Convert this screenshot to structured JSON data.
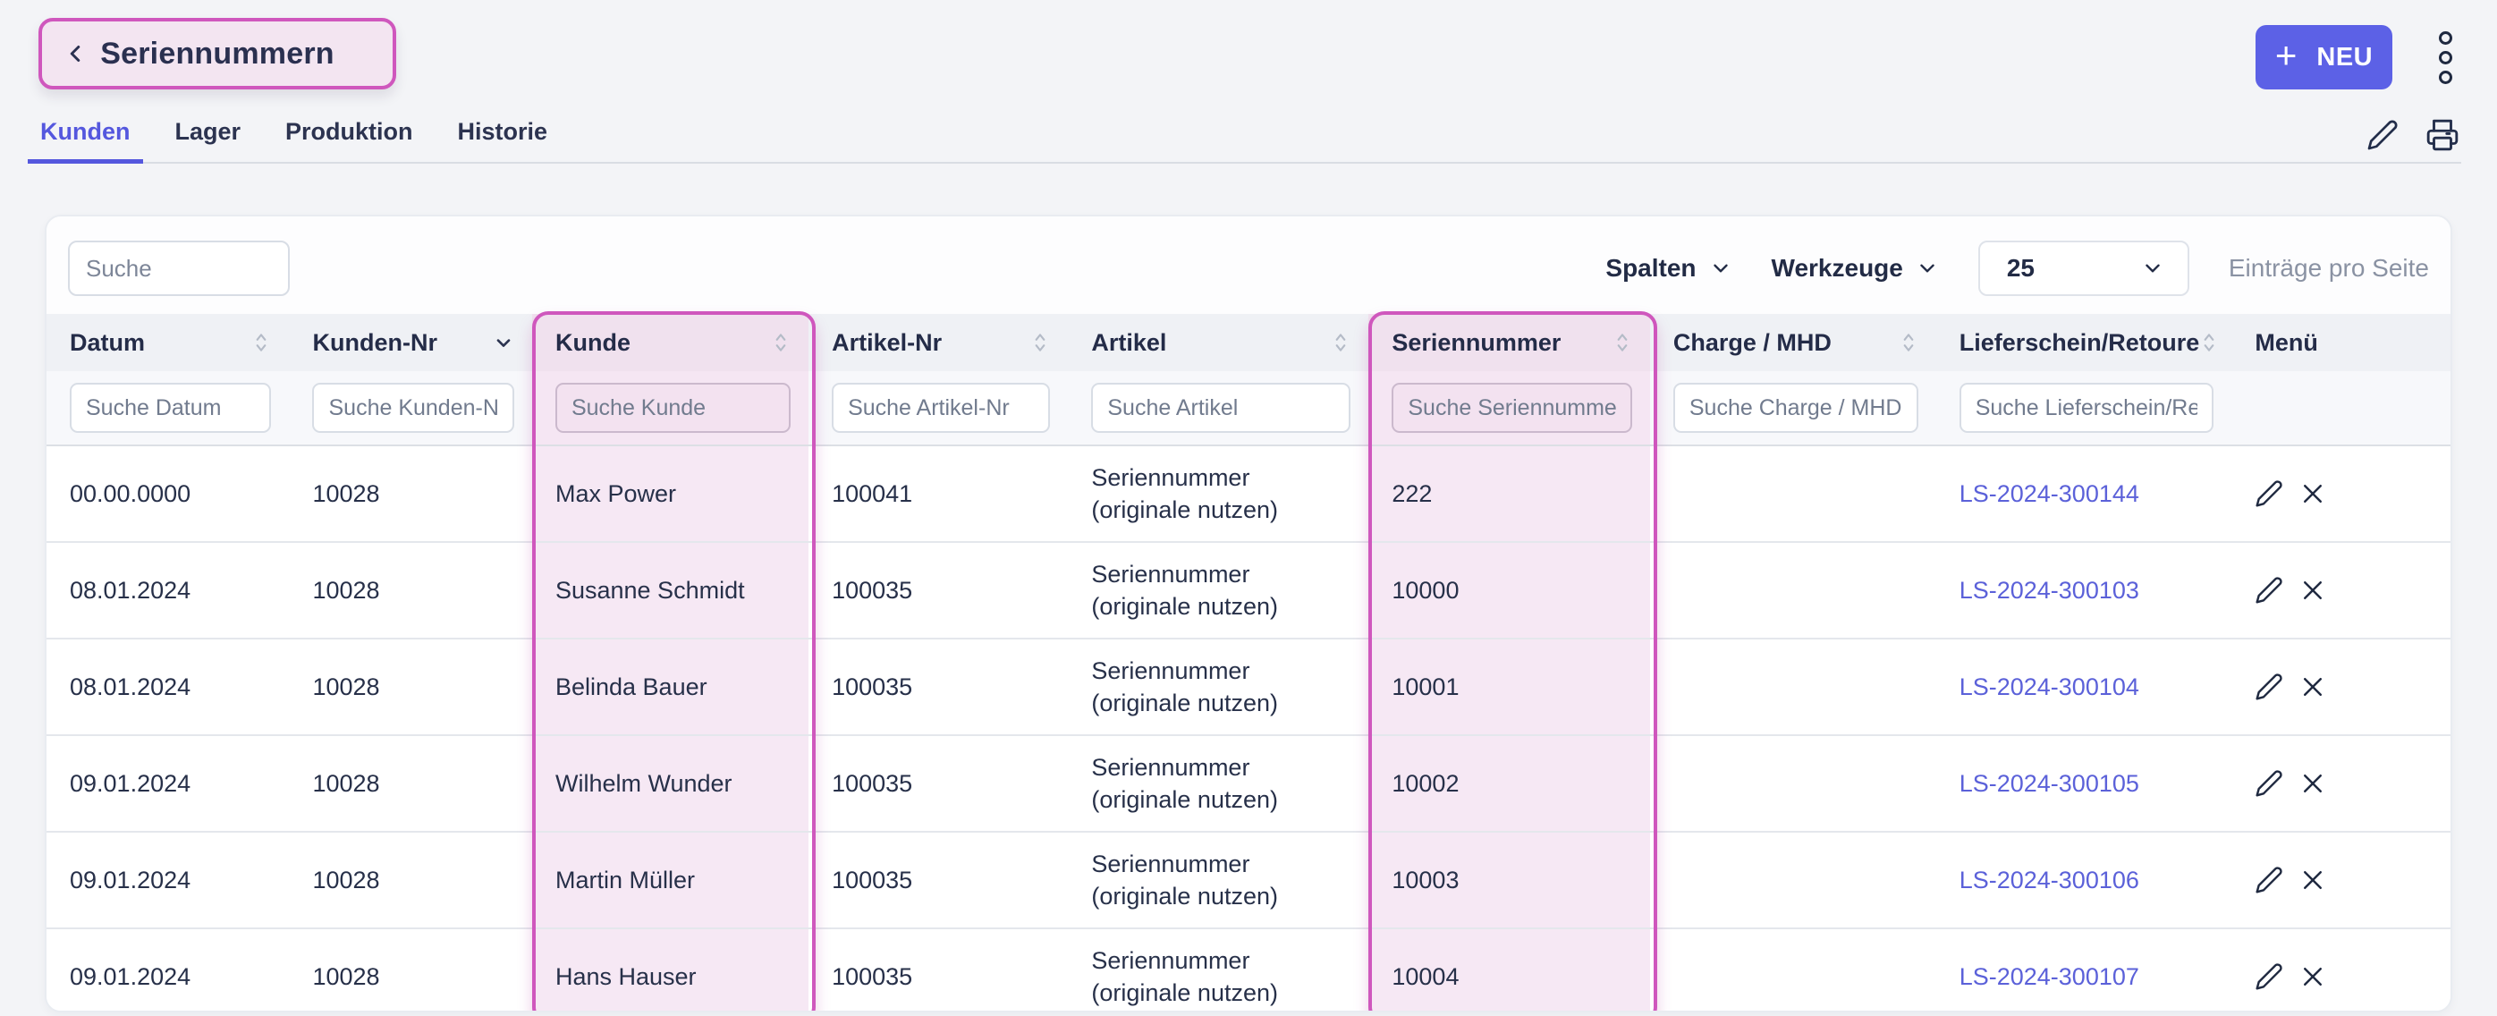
{
  "header": {
    "title": "Seriennummern",
    "back_icon": "chevron-left",
    "neu_button": {
      "plus": "+",
      "label": "NEU"
    },
    "kebab_icon": "three-dots-vertical",
    "tabs": [
      {
        "label": "Kunden",
        "active": true
      },
      {
        "label": "Lager",
        "active": false
      },
      {
        "label": "Produktion",
        "active": false
      },
      {
        "label": "Historie",
        "active": false
      }
    ],
    "action_icons": [
      "edit-pencil",
      "printer"
    ]
  },
  "toolbar": {
    "search_placeholder": "Suche",
    "spalten_label": "Spalten",
    "werkzeuge_label": "Werkzeuge",
    "page_size_value": "25",
    "entries_per_page_label": "Einträge pro Seite"
  },
  "table": {
    "columns": [
      {
        "key": "datum",
        "label": "Datum",
        "sort": "both",
        "filter_placeholder": "Suche Datum",
        "highlighted": false
      },
      {
        "key": "kunden-nr",
        "label": "Kunden-Nr",
        "sort": "desc",
        "filter_placeholder": "Suche Kunden-Nr",
        "highlighted": false
      },
      {
        "key": "kunde",
        "label": "Kunde",
        "sort": "both",
        "filter_placeholder": "Suche Kunde",
        "highlighted": true
      },
      {
        "key": "artikel-nr",
        "label": "Artikel-Nr",
        "sort": "both",
        "filter_placeholder": "Suche Artikel-Nr",
        "highlighted": false
      },
      {
        "key": "artikel",
        "label": "Artikel",
        "sort": "both",
        "filter_placeholder": "Suche Artikel",
        "highlighted": false
      },
      {
        "key": "seriennummer",
        "label": "Seriennummer",
        "sort": "both",
        "filter_placeholder": "Suche Seriennummer",
        "highlighted": true
      },
      {
        "key": "charge-mhd",
        "label": "Charge / MHD",
        "sort": "both",
        "filter_placeholder": "Suche Charge / MHD",
        "highlighted": false
      },
      {
        "key": "lieferschein-retoure",
        "label": "Lieferschein/Retoure",
        "sort": "both",
        "filter_placeholder": "Suche Lieferschein/Retoure",
        "highlighted": false
      },
      {
        "key": "menu",
        "label": "Menü",
        "sort": "none",
        "filter_placeholder": "",
        "highlighted": false
      }
    ],
    "rows": [
      {
        "datum": "00.00.0000",
        "kunden_nr": "10028",
        "kunde": "Max Power",
        "artikel_nr": "100041",
        "artikel": "Seriennummer (originale nutzen)",
        "seriennummer": "222",
        "charge_mhd": "",
        "lieferschein": "LS-2024-300144"
      },
      {
        "datum": "08.01.2024",
        "kunden_nr": "10028",
        "kunde": "Susanne Schmidt",
        "artikel_nr": "100035",
        "artikel": "Seriennummer (originale nutzen)",
        "seriennummer": "10000",
        "charge_mhd": "",
        "lieferschein": "LS-2024-300103"
      },
      {
        "datum": "08.01.2024",
        "kunden_nr": "10028",
        "kunde": "Belinda Bauer",
        "artikel_nr": "100035",
        "artikel": "Seriennummer (originale nutzen)",
        "seriennummer": "10001",
        "charge_mhd": "",
        "lieferschein": "LS-2024-300104"
      },
      {
        "datum": "09.01.2024",
        "kunden_nr": "10028",
        "kunde": "Wilhelm Wunder",
        "artikel_nr": "100035",
        "artikel": "Seriennummer (originale nutzen)",
        "seriennummer": "10002",
        "charge_mhd": "",
        "lieferschein": "LS-2024-300105"
      },
      {
        "datum": "09.01.2024",
        "kunden_nr": "10028",
        "kunde": "Martin Müller",
        "artikel_nr": "100035",
        "artikel": "Seriennummer (originale nutzen)",
        "seriennummer": "10003",
        "charge_mhd": "",
        "lieferschein": "LS-2024-300106"
      },
      {
        "datum": "09.01.2024",
        "kunden_nr": "10028",
        "kunde": "Hans Hauser",
        "artikel_nr": "100035",
        "artikel": "Seriennummer (originale nutzen)",
        "seriennummer": "10004",
        "charge_mhd": "",
        "lieferschein": "LS-2024-300107"
      }
    ],
    "row_action_icons": [
      "edit-pencil",
      "delete-x"
    ]
  },
  "colors": {
    "accent_purple": "#5c61e6",
    "active_tab_purple": "#5457de",
    "link_purple": "#5b61d9",
    "highlight_pink_border": "#cf57bd",
    "highlight_pink_fill": "#f6e8f4"
  }
}
